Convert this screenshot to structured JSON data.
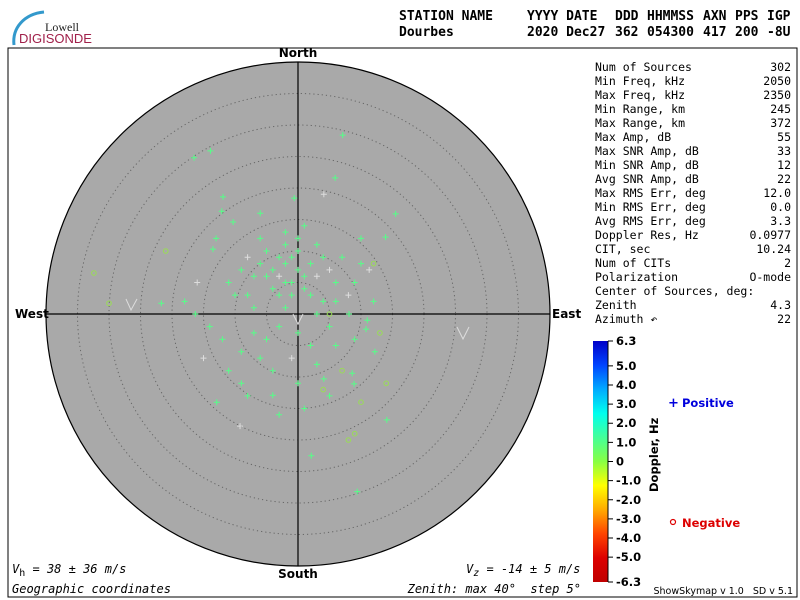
{
  "logo": {
    "line1": "Lowell",
    "line2": "DIGISONDE"
  },
  "header": {
    "labels": [
      "STATION NAME",
      "YYYY DATE",
      "DDD",
      "HHMMSS",
      "AXN",
      "PPS",
      "IGP"
    ],
    "values": [
      "Dourbes",
      "2020 Dec27",
      "362",
      "054300",
      "417",
      "200",
      "-8U"
    ]
  },
  "directions": {
    "north": "North",
    "south": "South",
    "east": "East",
    "west": "West"
  },
  "stats": [
    {
      "label": "Num of Sources",
      "value": "302"
    },
    {
      "label": "Min Freq, kHz",
      "value": "2050"
    },
    {
      "label": "Max Freq, kHz",
      "value": "2350"
    },
    {
      "label": "Min Range, km",
      "value": "245"
    },
    {
      "label": "Max Range, km",
      "value": "372"
    },
    {
      "label": "Max Amp, dB",
      "value": "55"
    },
    {
      "label": "Max SNR Amp, dB",
      "value": "33"
    },
    {
      "label": "Min SNR Amp, dB",
      "value": "12"
    },
    {
      "label": "Avg SNR Amp, dB",
      "value": "22"
    },
    {
      "label": "Max RMS Err, deg",
      "value": "12.0"
    },
    {
      "label": "Min RMS Err, deg",
      "value": "0.0"
    },
    {
      "label": "Avg RMS Err, deg",
      "value": "3.3"
    },
    {
      "label": "Doppler Res, Hz",
      "value": "0.0977"
    },
    {
      "label": "CIT, sec",
      "value": "10.24"
    },
    {
      "label": "Num of CITs",
      "value": "2"
    },
    {
      "label": "Polarization",
      "value": "O-mode"
    },
    {
      "label": "Center of Sources, deg:",
      "value": ""
    },
    {
      "label": "    Zenith",
      "value": "4.3"
    },
    {
      "label": "    Azimuth ↶",
      "value": "22"
    }
  ],
  "footer": {
    "vh_sym": "V",
    "vh_sub": "h",
    "vh_text": " = 38 ± 36 m/s",
    "vz_sym": "V",
    "vz_sub": "z",
    "vz_text": " = -14 ± 5 m/s",
    "coords": "Geographic coordinates",
    "zenith": "Zenith: max 40°  step 5°",
    "version": "ShowSkymap v 1.0   SD v 5.1"
  },
  "legend": {
    "positive_symbol": "+",
    "positive": "Positive",
    "negative_symbol": "o",
    "negative": "Negative",
    "colorbar_label": "Doppler, Hz",
    "positive_color": "#0000dd",
    "negative_color": "#dd0000"
  },
  "chart_data": {
    "type": "scatter",
    "projection": "polar skymap (zenith angle, azimuth)",
    "zenith_max_deg": 40,
    "zenith_step_deg": 5,
    "colorbar": {
      "min": -6.3,
      "max": 6.3,
      "ticks": [
        "6.3",
        "5.0",
        "4.0",
        "3.0",
        "2.0",
        "1.0",
        "0",
        "-1.0",
        "-2.0",
        "-3.0",
        "-4.0",
        "-5.0",
        "-6.3"
      ],
      "colors": [
        "#0000c8",
        "#0044ff",
        "#00aaff",
        "#00ffee",
        "#44ff99",
        "#88ff44",
        "#ffff00",
        "#ffaa00",
        "#ff4400",
        "#dd0000",
        "#c00000"
      ]
    },
    "points_east_north_deg_sign": [
      [
        -16.5,
        24.8,
        1
      ],
      [
        -13.9,
        25.9,
        1
      ],
      [
        7.1,
        28.4,
        1
      ],
      [
        5.9,
        21.6,
        1
      ],
      [
        4.1,
        19.0,
        1
      ],
      [
        -0.6,
        18.4,
        1
      ],
      [
        -11.9,
        18.6,
        1
      ],
      [
        -12.1,
        16.3,
        1
      ],
      [
        -10.3,
        14.6,
        1
      ],
      [
        15.5,
        15.9,
        1
      ],
      [
        13.9,
        12.2,
        1
      ],
      [
        -13.5,
        10.3,
        1
      ],
      [
        -32.4,
        6.5,
        -1
      ],
      [
        11.3,
        7.0,
        1
      ],
      [
        -21.7,
        1.7,
        1
      ],
      [
        -16.3,
        0,
        1
      ],
      [
        8.1,
        0,
        1
      ],
      [
        10.8,
        -2.4,
        1
      ],
      [
        12.2,
        -6.0,
        1
      ],
      [
        8.6,
        -9.4,
        1
      ],
      [
        8.9,
        -11.1,
        1
      ],
      [
        -12.9,
        -14.0,
        1
      ],
      [
        -9.2,
        -17.8,
        1
      ],
      [
        14.1,
        -16.8,
        1
      ],
      [
        2.1,
        -22.5,
        1
      ],
      [
        9.4,
        -28.2,
        1
      ],
      [
        -4.0,
        -12.9,
        1
      ],
      [
        4.1,
        -10.3,
        1
      ],
      [
        -2,
        8,
        1
      ],
      [
        -1,
        9,
        1
      ],
      [
        0,
        7,
        1
      ],
      [
        -3,
        6,
        1
      ],
      [
        -2,
        5,
        1
      ],
      [
        -4,
        7,
        1
      ],
      [
        1,
        6,
        1
      ],
      [
        2,
        8,
        1
      ],
      [
        -1,
        5,
        1
      ],
      [
        -3,
        9,
        1
      ],
      [
        -5,
        6,
        1
      ],
      [
        0,
        10,
        1
      ],
      [
        3,
        6,
        1
      ],
      [
        -2,
        11,
        1
      ],
      [
        1,
        4,
        1
      ],
      [
        -4,
        4,
        1
      ],
      [
        -6,
        8,
        1
      ],
      [
        2,
        3,
        1
      ],
      [
        -1,
        3,
        1
      ],
      [
        4,
        9,
        1
      ],
      [
        -3,
        3,
        1
      ],
      [
        5,
        7,
        1
      ],
      [
        -5,
        10,
        1
      ],
      [
        3,
        11,
        1
      ],
      [
        -7,
        6,
        1
      ],
      [
        6,
        5,
        1
      ],
      [
        0,
        12,
        1
      ],
      [
        -2,
        13,
        1
      ],
      [
        1,
        14,
        1
      ],
      [
        -6,
        12,
        1
      ],
      [
        -8,
        9,
        1
      ],
      [
        7,
        9,
        1
      ],
      [
        6,
        2,
        1
      ],
      [
        4,
        2,
        1
      ],
      [
        -8,
        3,
        1
      ],
      [
        -9,
        7,
        1
      ],
      [
        -10,
        3,
        1
      ],
      [
        -7,
        1,
        1
      ],
      [
        9,
        5,
        1
      ],
      [
        8,
        3,
        1
      ],
      [
        -11,
        5,
        1
      ],
      [
        10,
        8,
        1
      ],
      [
        -3,
        -2,
        1
      ],
      [
        0,
        -3,
        1
      ],
      [
        2,
        -5,
        1
      ],
      [
        -5,
        -4,
        1
      ],
      [
        -7,
        -3,
        1
      ],
      [
        5,
        -2,
        1
      ],
      [
        -1,
        -7,
        1
      ],
      [
        3,
        -8,
        1
      ],
      [
        -6,
        -7,
        1
      ],
      [
        -9,
        -6,
        1
      ],
      [
        6,
        -5,
        1
      ],
      [
        -4,
        -9,
        1
      ],
      [
        0,
        -11,
        1
      ],
      [
        -12,
        -4,
        1
      ],
      [
        -14,
        -2,
        1
      ],
      [
        -15,
        -7,
        1
      ],
      [
        -11,
        -9,
        1
      ],
      [
        1,
        -15,
        1
      ],
      [
        -3,
        -16,
        1
      ],
      [
        -8,
        -13,
        1
      ],
      [
        5,
        -13,
        1
      ],
      [
        9,
        -4,
        1
      ],
      [
        11,
        -1,
        1
      ],
      [
        -18,
        2,
        1
      ],
      [
        -16,
        5,
        1
      ],
      [
        12,
        2,
        1
      ],
      [
        -13,
        12,
        1
      ],
      [
        10,
        12,
        1
      ],
      [
        -6,
        16,
        1
      ],
      [
        -9,
        -11,
        1
      ],
      [
        3,
        0,
        1
      ],
      [
        -2,
        1,
        1
      ],
      [
        4,
        -12,
        -1
      ],
      [
        7,
        -9,
        -1
      ],
      [
        10,
        -14,
        -1
      ],
      [
        14,
        -11,
        -1
      ],
      [
        13,
        -3,
        -1
      ],
      [
        12,
        8,
        -1
      ],
      [
        5,
        0,
        -1
      ],
      [
        -30,
        1.7,
        -1
      ],
      [
        -21,
        10,
        -1
      ],
      [
        9,
        -19,
        -1
      ],
      [
        8,
        -20,
        -1
      ]
    ]
  }
}
